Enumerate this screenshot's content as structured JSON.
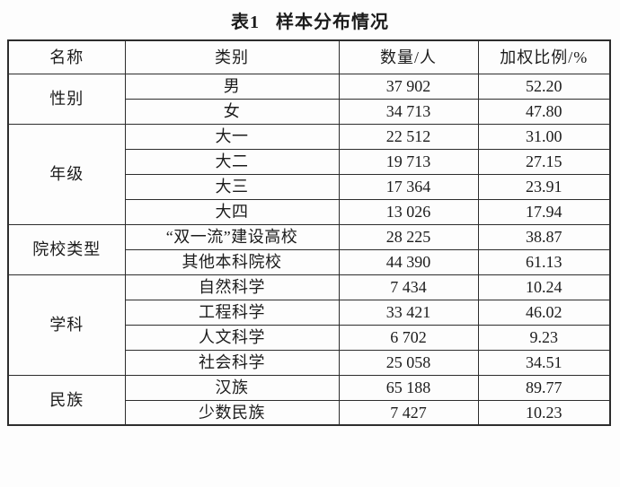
{
  "caption": {
    "number": "表1",
    "text": "样本分布情况"
  },
  "table": {
    "headers": [
      "名称",
      "类别",
      "数量/人",
      "加权比例/%"
    ],
    "groups": [
      {
        "name": "性别",
        "rows": [
          {
            "category": "男",
            "count": "37 902",
            "pct": "52.20"
          },
          {
            "category": "女",
            "count": "34 713",
            "pct": "47.80"
          }
        ]
      },
      {
        "name": "年级",
        "rows": [
          {
            "category": "大一",
            "count": "22 512",
            "pct": "31.00"
          },
          {
            "category": "大二",
            "count": "19 713",
            "pct": "27.15"
          },
          {
            "category": "大三",
            "count": "17 364",
            "pct": "23.91"
          },
          {
            "category": "大四",
            "count": "13 026",
            "pct": "17.94"
          }
        ]
      },
      {
        "name": "院校类型",
        "rows": [
          {
            "category": "“双一流”建设高校",
            "count": "28 225",
            "pct": "38.87"
          },
          {
            "category": "其他本科院校",
            "count": "44 390",
            "pct": "61.13"
          }
        ]
      },
      {
        "name": "学科",
        "rows": [
          {
            "category": "自然科学",
            "count": "7 434",
            "pct": "10.24"
          },
          {
            "category": "工程科学",
            "count": "33 421",
            "pct": "46.02"
          },
          {
            "category": "人文科学",
            "count": "6 702",
            "pct": "9.23"
          },
          {
            "category": "社会科学",
            "count": "25 058",
            "pct": "34.51"
          }
        ]
      },
      {
        "name": "民族",
        "rows": [
          {
            "category": "汉族",
            "count": "65 188",
            "pct": "89.77"
          },
          {
            "category": "少数民族",
            "count": "7 427",
            "pct": "10.23"
          }
        ]
      }
    ]
  }
}
